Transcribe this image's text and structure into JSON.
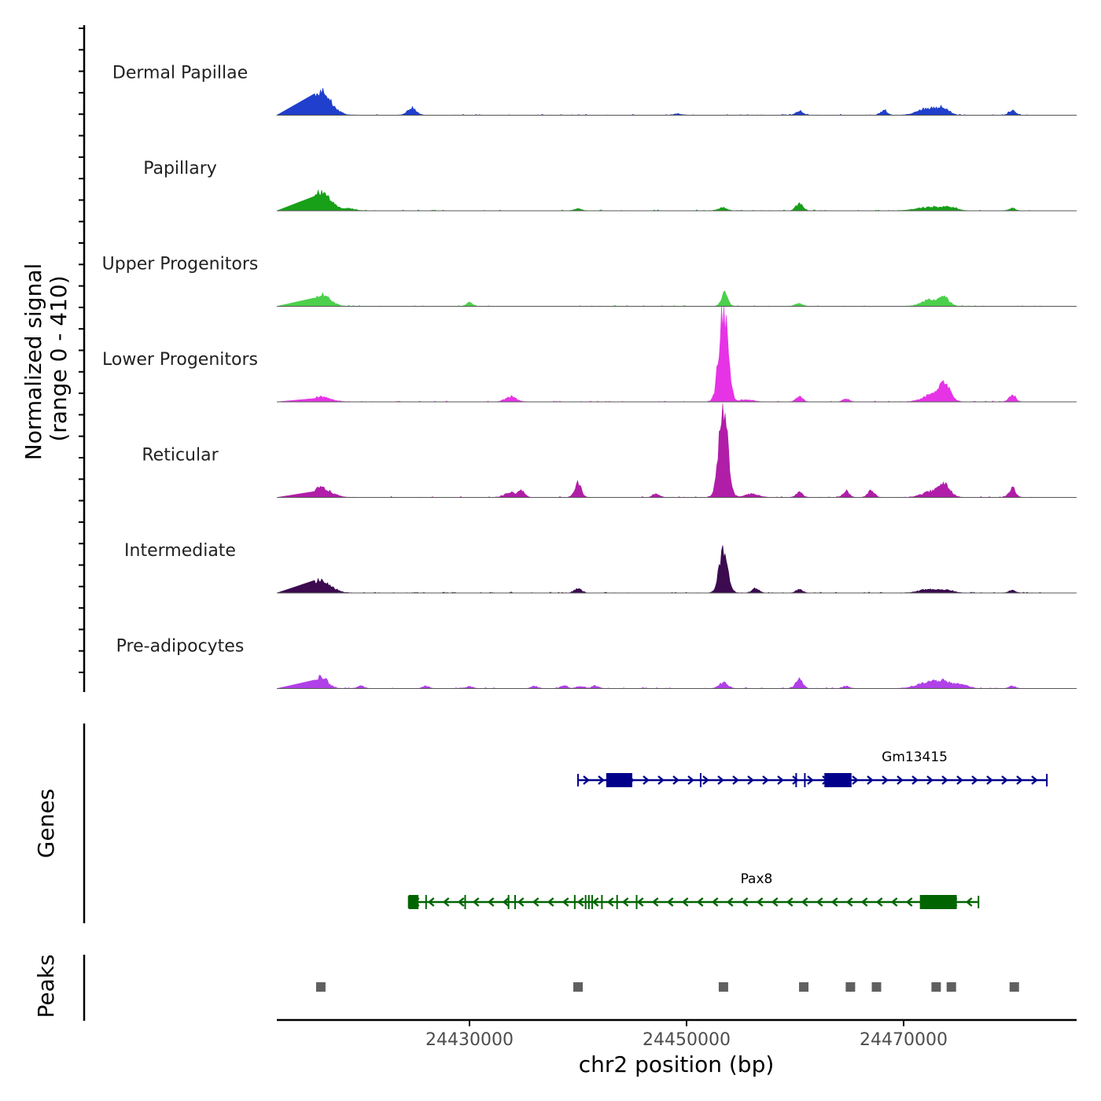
{
  "chart_data": {
    "type": "area",
    "title": "",
    "xlabel": "chr2 position (bp)",
    "x_ticks": [
      24430000,
      24450000,
      24470000
    ],
    "x_range": [
      24412000,
      24486000
    ],
    "y_axis": {
      "label_line1": "Normalized signal",
      "label_line2": "(range 0 - 410)",
      "range": [
        0,
        410
      ]
    },
    "tracks": [
      {
        "name": "Dermal Papillae",
        "color": "#1f3fcc",
        "peaks": [
          [
            24416300,
            100,
            900
          ],
          [
            24424700,
            30,
            400
          ],
          [
            24449200,
            5,
            400
          ],
          [
            24460400,
            20,
            300
          ],
          [
            24468200,
            20,
            300
          ],
          [
            24472300,
            30,
            900
          ],
          [
            24473700,
            25,
            500
          ],
          [
            24480000,
            20,
            300
          ]
        ]
      },
      {
        "name": "Papillary",
        "color": "#18a018",
        "peaks": [
          [
            24416300,
            75,
            900
          ],
          [
            24419000,
            8,
            500
          ],
          [
            24440000,
            10,
            300
          ],
          [
            24453300,
            12,
            400
          ],
          [
            24460400,
            30,
            300
          ],
          [
            24472500,
            15,
            1200
          ],
          [
            24474300,
            12,
            600
          ],
          [
            24480000,
            10,
            300
          ]
        ]
      },
      {
        "name": "Upper Progenitors",
        "color": "#4cd04c",
        "peaks": [
          [
            24416300,
            50,
            800
          ],
          [
            24430000,
            15,
            300
          ],
          [
            24453500,
            55,
            300
          ],
          [
            24460400,
            12,
            300
          ],
          [
            24472300,
            25,
            700
          ],
          [
            24473700,
            35,
            500
          ]
        ]
      },
      {
        "name": "Lower Progenitors",
        "color": "#e633e6",
        "peaks": [
          [
            24416300,
            20,
            900
          ],
          [
            24433800,
            20,
            500
          ],
          [
            24453400,
            410,
            400
          ],
          [
            24455500,
            8,
            600
          ],
          [
            24460400,
            20,
            300
          ],
          [
            24464700,
            12,
            300
          ],
          [
            24472700,
            30,
            900
          ],
          [
            24473800,
            65,
            500
          ],
          [
            24480000,
            30,
            300
          ]
        ]
      },
      {
        "name": "Reticular",
        "color": "#b01ea8",
        "peaks": [
          [
            24416300,
            40,
            900
          ],
          [
            24433800,
            20,
            500
          ],
          [
            24434800,
            25,
            300
          ],
          [
            24440000,
            60,
            300
          ],
          [
            24447200,
            15,
            300
          ],
          [
            24453400,
            410,
            400
          ],
          [
            24456000,
            15,
            600
          ],
          [
            24460400,
            20,
            300
          ],
          [
            24464700,
            25,
            300
          ],
          [
            24467000,
            30,
            300
          ],
          [
            24472700,
            25,
            900
          ],
          [
            24473800,
            45,
            500
          ],
          [
            24480000,
            40,
            300
          ]
        ]
      },
      {
        "name": "Intermediate",
        "color": "#3b0a4f",
        "peaks": [
          [
            24416300,
            55,
            900
          ],
          [
            24440000,
            20,
            300
          ],
          [
            24453400,
            180,
            400
          ],
          [
            24456400,
            20,
            300
          ],
          [
            24460400,
            15,
            300
          ],
          [
            24472400,
            15,
            900
          ],
          [
            24474000,
            10,
            600
          ],
          [
            24480000,
            10,
            300
          ]
        ]
      },
      {
        "name": "Pre-adipocytes",
        "color": "#b040e8",
        "peaks": [
          [
            24416300,
            50,
            600
          ],
          [
            24420000,
            10,
            300
          ],
          [
            24426000,
            10,
            300
          ],
          [
            24430000,
            8,
            300
          ],
          [
            24436000,
            10,
            300
          ],
          [
            24438700,
            12,
            300
          ],
          [
            24440300,
            10,
            300
          ],
          [
            24441600,
            10,
            300
          ],
          [
            24453400,
            25,
            400
          ],
          [
            24460400,
            45,
            300
          ],
          [
            24464700,
            10,
            300
          ],
          [
            24472000,
            20,
            900
          ],
          [
            24473700,
            30,
            900
          ],
          [
            24475500,
            15,
            500
          ],
          [
            24480000,
            10,
            300
          ]
        ]
      }
    ],
    "genes_label": "Genes",
    "genes": [
      {
        "name": "Gm13415",
        "strand": "+",
        "color": "#00008b",
        "start": 24440000,
        "end": 24483200,
        "exons": [
          [
            24442600,
            24445000
          ],
          [
            24462700,
            24465200
          ]
        ],
        "ticks": [
          24451300,
          24460100,
          24460900
        ]
      },
      {
        "name": "Pax8",
        "strand": "-",
        "color": "#006400",
        "start": 24424400,
        "end": 24476900,
        "exons": [
          [
            24424400,
            24425300
          ],
          [
            24471500,
            24474900
          ]
        ],
        "ticks": [
          24426000,
          24429600,
          24433600,
          24434200,
          24439700,
          24440700,
          24441000,
          24441300,
          24442200,
          24443600,
          24445400
        ]
      }
    ],
    "peaks_label": "Peaks",
    "peak_regions": [
      24416300,
      24440000,
      24453400,
      24460800,
      24465100,
      24467500,
      24473000,
      24474400,
      24480200
    ]
  }
}
